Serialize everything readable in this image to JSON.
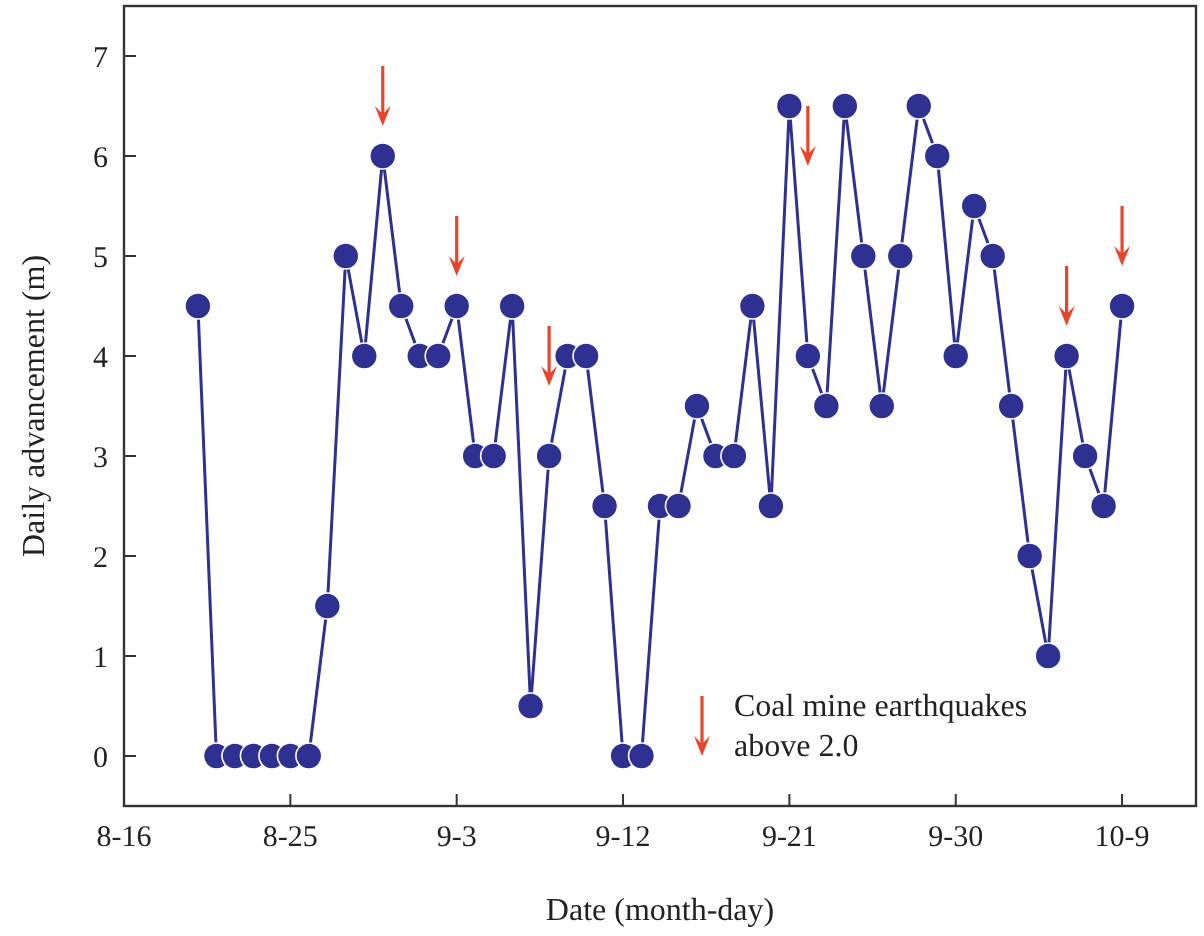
{
  "chart_data": {
    "type": "line",
    "xlabel": "Date (month-day)",
    "ylabel": "Daily advancement (m)",
    "xlim": [
      "--08-16",
      "--10-13"
    ],
    "ylim": [
      -0.5,
      7.5
    ],
    "xticks": [
      {
        "value": "--08-16",
        "label": "8-16"
      },
      {
        "value": "--08-25",
        "label": "8-25"
      },
      {
        "value": "--09-03",
        "label": "9-3"
      },
      {
        "value": "--09-12",
        "label": "9-12"
      },
      {
        "value": "--09-21",
        "label": "9-21"
      },
      {
        "value": "--09-30",
        "label": "9-30"
      },
      {
        "value": "--10-09",
        "label": "10-9"
      }
    ],
    "yticks": [
      0,
      1,
      2,
      3,
      4,
      5,
      6,
      7
    ],
    "grid": false,
    "legend": "bottom right",
    "marker": "circle",
    "line_style": "solid",
    "series": [
      {
        "color": "#2e3192",
        "x": [
          "--08-20",
          "--08-21",
          "--08-22",
          "--08-23",
          "--08-24",
          "--08-25",
          "--08-26",
          "--08-27",
          "--08-28",
          "--08-29",
          "--08-30",
          "--08-31",
          "--09-01",
          "--09-02",
          "--09-03",
          "--09-04",
          "--09-05",
          "--09-06",
          "--09-07",
          "--09-08",
          "--09-09",
          "--09-10",
          "--09-11",
          "--09-12",
          "--09-13",
          "--09-14",
          "--09-15",
          "--09-16",
          "--09-17",
          "--09-18",
          "--09-19",
          "--09-20",
          "--09-21",
          "--09-22",
          "--09-23",
          "--09-24",
          "--09-25",
          "--09-26",
          "--09-27",
          "--09-28",
          "--09-29",
          "--09-30",
          "--10-01",
          "--10-02",
          "--10-03",
          "--10-04",
          "--10-05",
          "--10-06",
          "--10-07",
          "--10-08",
          "--10-09"
        ],
        "values": [
          4.5,
          0,
          0,
          0,
          0,
          0,
          0,
          1.5,
          5,
          4,
          6,
          4.5,
          4,
          4,
          4.5,
          3,
          3,
          4.5,
          0.5,
          3,
          4,
          4,
          2.5,
          0,
          0,
          2.5,
          2.5,
          3.5,
          3,
          3,
          4.5,
          2.5,
          6.5,
          4,
          3.5,
          6.5,
          5,
          3.5,
          5,
          6.5,
          6,
          4,
          5.5,
          5,
          3.5,
          2,
          1,
          4,
          3,
          2.5,
          4.5
        ]
      },
      {
        "type": "scatter",
        "marker": "diamond",
        "name": "Coal mine earthquakes above 2.0",
        "color": "#e8452c",
        "x": [
          "--08-30",
          "--09-03",
          "--09-08",
          "--09-22",
          "--10-06",
          "--10-09"
        ],
        "values": [
          6.4,
          4.9,
          3.8,
          6,
          4.4,
          5
        ]
      }
    ]
  }
}
